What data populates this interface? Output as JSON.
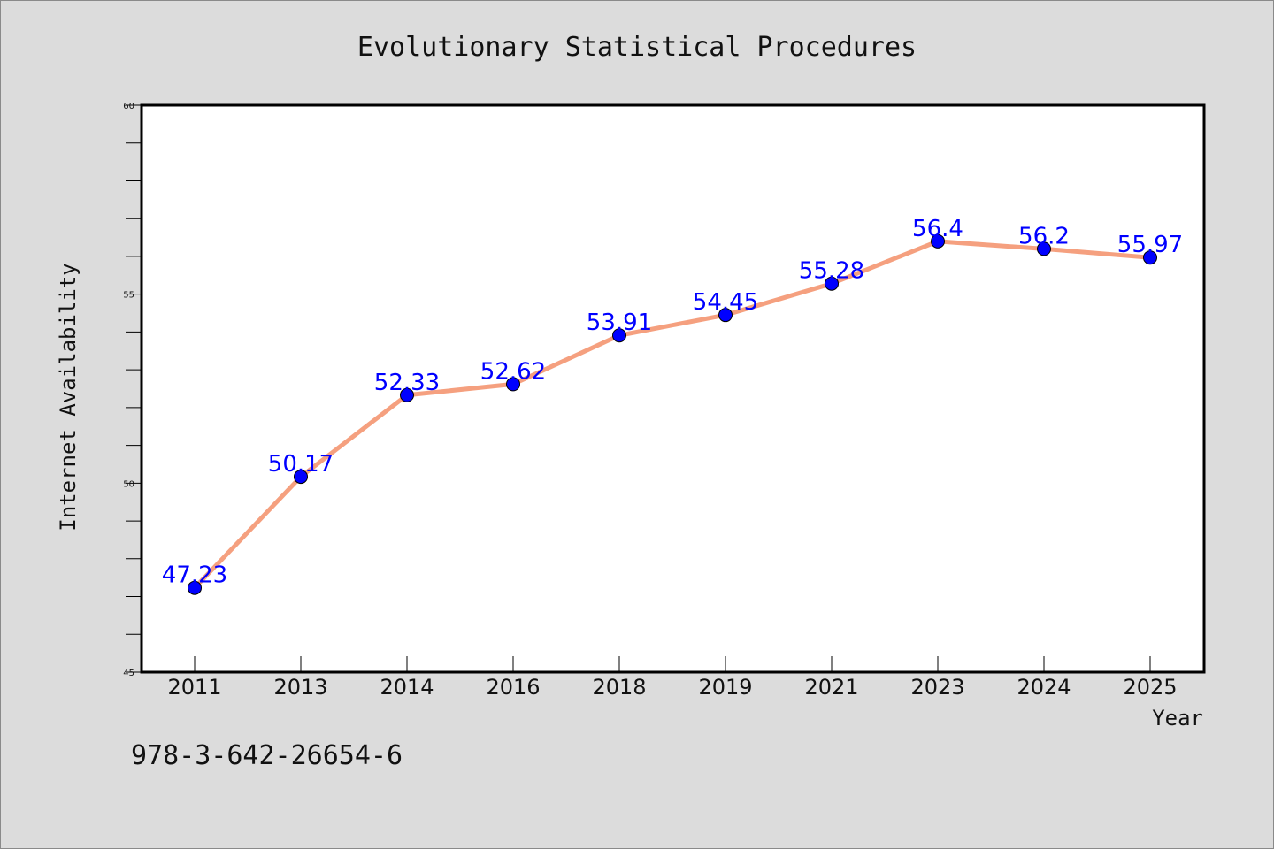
{
  "chart_data": {
    "type": "line",
    "title": "Evolutionary Statistical Procedures",
    "xlabel": "Year",
    "ylabel": "Internet Availability",
    "categories": [
      "2011",
      "2013",
      "2014",
      "2016",
      "2018",
      "2019",
      "2021",
      "2023",
      "2024",
      "2025"
    ],
    "series": [
      {
        "values": [
          47.23,
          50.17,
          52.33,
          52.62,
          53.91,
          54.45,
          55.28,
          56.4,
          56.2,
          55.97
        ],
        "point_labels": [
          "47.23",
          "50.17",
          "52.33",
          "52.62",
          "53.91",
          "54.45",
          "55.28",
          "56.4",
          "56.2",
          "55.97"
        ],
        "line_color": "#f5a07f",
        "marker_color": "#0000ff"
      }
    ],
    "ylim": [
      45,
      60
    ],
    "yticks_major": [
      45,
      50,
      55,
      60
    ],
    "yticks_major_labels": [
      "45",
      "50",
      "55",
      "60"
    ],
    "yticks_minor_step": 1,
    "grid": false,
    "legend": "none",
    "label_color": "#0000ff"
  },
  "footer": {
    "isbn": "978-3-642-26654-6"
  }
}
